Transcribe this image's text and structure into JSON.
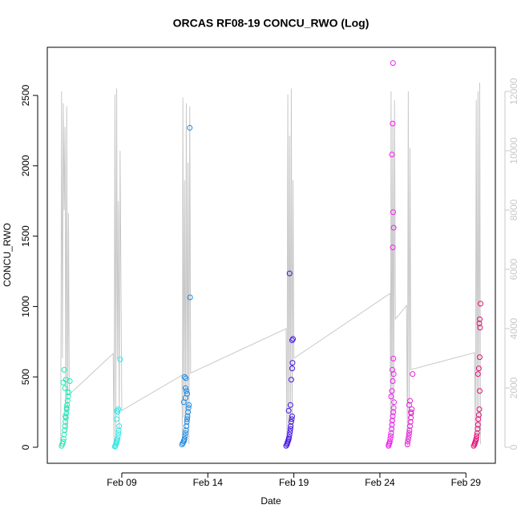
{
  "chart_data": {
    "type": "scatter",
    "title": "ORCAS RF08-19 CONCU_RWO (Log)",
    "x_label": "Date",
    "y_label": "CONCU_RWO",
    "xlim": [
      4.67,
      30.71
    ],
    "xticks": [
      {
        "value": 9,
        "label": "Feb 09"
      },
      {
        "value": 14,
        "label": "Feb 14"
      },
      {
        "value": 19,
        "label": "Feb 19"
      },
      {
        "value": 24,
        "label": "Feb 24"
      },
      {
        "value": 29,
        "label": "Feb 29"
      }
    ],
    "ylim": [
      -114,
      2842
    ],
    "yticks": [
      0,
      500,
      1000,
      1500,
      2000,
      2500
    ],
    "y2lim": [
      -541,
      13488
    ],
    "y2ticks": [
      0,
      2000,
      4000,
      6000,
      8000,
      10000,
      12000
    ],
    "y2_color": "#c8c8c8",
    "series": [
      {
        "style": "line",
        "axis": "y2",
        "color": "#c8c8c8",
        "x": [
          5.45,
          5.5,
          5.55,
          5.6,
          5.65,
          5.7,
          5.75,
          5.8,
          5.85,
          5.9,
          5.95,
          8.5,
          8.55,
          8.6,
          8.65,
          8.7,
          8.75,
          8.8,
          8.85,
          8.9,
          9.0,
          12.5,
          12.52,
          12.55,
          12.6,
          12.65,
          12.7,
          12.75,
          12.8,
          12.85,
          12.9,
          12.95,
          13.0,
          18.55,
          18.6,
          18.65,
          18.7,
          18.75,
          18.8,
          18.85,
          18.9,
          18.95,
          19.0,
          24.6,
          24.62,
          24.65,
          24.7,
          24.75,
          24.8,
          24.85,
          24.9,
          25.55,
          25.6,
          25.65,
          25.7,
          25.75,
          25.8,
          29.5,
          29.55,
          29.6,
          29.65,
          29.7,
          29.75,
          29.8,
          29.85
        ],
        "values": [
          0,
          12000,
          3000,
          11600,
          8000,
          10800,
          500,
          11500,
          600,
          7900,
          1780,
          3160,
          0,
          11900,
          200,
          12100,
          3000,
          8300,
          600,
          10000,
          1240,
          2430,
          100,
          11800,
          1000,
          9000,
          200,
          11600,
          800,
          9600,
          100,
          11500,
          2500,
          4000,
          0,
          11900,
          300,
          10500,
          600,
          12100,
          500,
          9000,
          3000,
          5190,
          0,
          12000,
          500,
          11000,
          300,
          11700,
          4320,
          4780,
          0,
          12000,
          400,
          10100,
          2620,
          3190,
          0,
          11700,
          400,
          12000,
          300,
          12300,
          100
        ]
      },
      {
        "style": "points",
        "color": "#1de9b6",
        "x": [
          5.5,
          5.55,
          5.6,
          5.62,
          5.65,
          5.68,
          5.7,
          5.72,
          5.75,
          5.78,
          5.8,
          5.82,
          5.85,
          5.88,
          5.9,
          5.7,
          5.6,
          5.75,
          5.8,
          5.72,
          5.65,
          5.98
        ],
        "values": [
          10,
          25,
          40,
          60,
          90,
          120,
          150,
          180,
          210,
          240,
          270,
          300,
          330,
          360,
          390,
          420,
          460,
          480,
          280,
          220,
          550,
          470
        ]
      },
      {
        "style": "points",
        "color": "#33e6e6",
        "x": [
          8.6,
          8.62,
          8.65,
          8.68,
          8.7,
          8.72,
          8.75,
          8.78,
          8.8,
          8.82,
          8.85,
          8.7,
          8.75,
          8.8,
          8.72,
          8.9
        ],
        "values": [
          5,
          10,
          20,
          30,
          40,
          50,
          60,
          80,
          100,
          120,
          150,
          200,
          250,
          270,
          260,
          625
        ]
      },
      {
        "style": "points",
        "color": "#1a8ae6",
        "x": [
          12.5,
          12.55,
          12.6,
          12.62,
          12.65,
          12.68,
          12.7,
          12.72,
          12.75,
          12.78,
          12.8,
          12.82,
          12.85,
          12.88,
          12.9,
          12.6,
          12.7,
          12.8,
          12.75,
          12.7,
          12.95,
          12.97,
          12.65,
          12.72
        ],
        "values": [
          20,
          30,
          40,
          50,
          60,
          80,
          100,
          120,
          150,
          180,
          200,
          220,
          250,
          280,
          300,
          320,
          350,
          380,
          400,
          420,
          2270,
          1065,
          500,
          490
        ]
      },
      {
        "style": "points",
        "color": "#4414e6",
        "x": [
          18.55,
          18.6,
          18.62,
          18.65,
          18.68,
          18.7,
          18.72,
          18.75,
          18.78,
          18.8,
          18.82,
          18.85,
          18.88,
          18.9,
          18.7,
          18.8,
          18.85,
          18.9,
          18.92,
          18.95,
          18.75,
          18.9
        ],
        "values": [
          10,
          20,
          30,
          40,
          50,
          60,
          70,
          90,
          110,
          130,
          150,
          180,
          200,
          220,
          260,
          300,
          480,
          560,
          600,
          770,
          1235,
          760
        ]
      },
      {
        "style": "points",
        "color": "#f020f0",
        "x": [
          24.5,
          24.52,
          24.55,
          24.58,
          24.6,
          24.62,
          24.65,
          24.68,
          24.7,
          24.72,
          24.75,
          24.78,
          24.8,
          24.82,
          24.65,
          24.7,
          24.75,
          24.8,
          24.72,
          24.78,
          24.75,
          24.8,
          24.77,
          24.7,
          24.74,
          24.76
        ],
        "values": [
          10,
          20,
          30,
          40,
          60,
          80,
          100,
          130,
          160,
          190,
          220,
          250,
          280,
          320,
          360,
          400,
          470,
          520,
          550,
          630,
          1420,
          1560,
          1670,
          2080,
          2300,
          2730
        ]
      },
      {
        "style": "points",
        "color": "#e020d0",
        "x": [
          25.6,
          25.62,
          25.65,
          25.68,
          25.7,
          25.72,
          25.75,
          25.78,
          25.8,
          25.82,
          25.85,
          25.7,
          25.75,
          25.8,
          25.9
        ],
        "values": [
          20,
          40,
          60,
          80,
          100,
          120,
          150,
          180,
          210,
          240,
          270,
          300,
          330,
          250,
          520
        ]
      },
      {
        "style": "points",
        "color": "#e8107a",
        "x": [
          29.45,
          29.5,
          29.52,
          29.55,
          29.58,
          29.6,
          29.62,
          29.65,
          29.68,
          29.7,
          29.72,
          29.75,
          29.78,
          29.8,
          29.7,
          29.75,
          29.8,
          29.82,
          29.78,
          29.8,
          29.85
        ],
        "values": [
          10,
          20,
          30,
          40,
          50,
          60,
          80,
          100,
          130,
          160,
          200,
          230,
          270,
          400,
          520,
          560,
          640,
          850,
          880,
          910,
          1020
        ]
      }
    ]
  }
}
